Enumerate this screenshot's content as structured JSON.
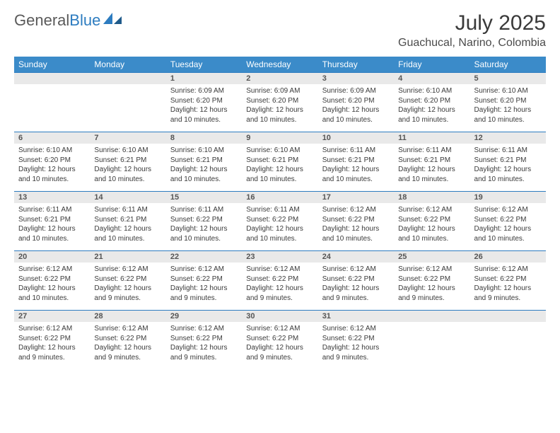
{
  "brand": {
    "word1": "General",
    "word2": "Blue"
  },
  "title": "July 2025",
  "location": "Guachucal, Narino, Colombia",
  "colors": {
    "header_bg": "#3b8bc9",
    "header_text": "#ffffff",
    "rule": "#2d7cc0",
    "daynum_bg": "#e9e9e9",
    "body_text": "#3a3a3a",
    "logo_gray": "#5a5a5a",
    "logo_blue": "#2d7cc0",
    "page_bg": "#ffffff"
  },
  "calendar": {
    "type": "calendar-table",
    "day_headers": [
      "Sunday",
      "Monday",
      "Tuesday",
      "Wednesday",
      "Thursday",
      "Friday",
      "Saturday"
    ],
    "first_weekday_index": 2,
    "days_in_month": 31,
    "header_fontsize": 12,
    "daynum_fontsize": 11,
    "body_fontsize": 10,
    "days": {
      "1": {
        "sunrise": "6:09 AM",
        "sunset": "6:20 PM",
        "daylight": "12 hours and 10 minutes."
      },
      "2": {
        "sunrise": "6:09 AM",
        "sunset": "6:20 PM",
        "daylight": "12 hours and 10 minutes."
      },
      "3": {
        "sunrise": "6:09 AM",
        "sunset": "6:20 PM",
        "daylight": "12 hours and 10 minutes."
      },
      "4": {
        "sunrise": "6:10 AM",
        "sunset": "6:20 PM",
        "daylight": "12 hours and 10 minutes."
      },
      "5": {
        "sunrise": "6:10 AM",
        "sunset": "6:20 PM",
        "daylight": "12 hours and 10 minutes."
      },
      "6": {
        "sunrise": "6:10 AM",
        "sunset": "6:20 PM",
        "daylight": "12 hours and 10 minutes."
      },
      "7": {
        "sunrise": "6:10 AM",
        "sunset": "6:21 PM",
        "daylight": "12 hours and 10 minutes."
      },
      "8": {
        "sunrise": "6:10 AM",
        "sunset": "6:21 PM",
        "daylight": "12 hours and 10 minutes."
      },
      "9": {
        "sunrise": "6:10 AM",
        "sunset": "6:21 PM",
        "daylight": "12 hours and 10 minutes."
      },
      "10": {
        "sunrise": "6:11 AM",
        "sunset": "6:21 PM",
        "daylight": "12 hours and 10 minutes."
      },
      "11": {
        "sunrise": "6:11 AM",
        "sunset": "6:21 PM",
        "daylight": "12 hours and 10 minutes."
      },
      "12": {
        "sunrise": "6:11 AM",
        "sunset": "6:21 PM",
        "daylight": "12 hours and 10 minutes."
      },
      "13": {
        "sunrise": "6:11 AM",
        "sunset": "6:21 PM",
        "daylight": "12 hours and 10 minutes."
      },
      "14": {
        "sunrise": "6:11 AM",
        "sunset": "6:21 PM",
        "daylight": "12 hours and 10 minutes."
      },
      "15": {
        "sunrise": "6:11 AM",
        "sunset": "6:22 PM",
        "daylight": "12 hours and 10 minutes."
      },
      "16": {
        "sunrise": "6:11 AM",
        "sunset": "6:22 PM",
        "daylight": "12 hours and 10 minutes."
      },
      "17": {
        "sunrise": "6:12 AM",
        "sunset": "6:22 PM",
        "daylight": "12 hours and 10 minutes."
      },
      "18": {
        "sunrise": "6:12 AM",
        "sunset": "6:22 PM",
        "daylight": "12 hours and 10 minutes."
      },
      "19": {
        "sunrise": "6:12 AM",
        "sunset": "6:22 PM",
        "daylight": "12 hours and 10 minutes."
      },
      "20": {
        "sunrise": "6:12 AM",
        "sunset": "6:22 PM",
        "daylight": "12 hours and 10 minutes."
      },
      "21": {
        "sunrise": "6:12 AM",
        "sunset": "6:22 PM",
        "daylight": "12 hours and 9 minutes."
      },
      "22": {
        "sunrise": "6:12 AM",
        "sunset": "6:22 PM",
        "daylight": "12 hours and 9 minutes."
      },
      "23": {
        "sunrise": "6:12 AM",
        "sunset": "6:22 PM",
        "daylight": "12 hours and 9 minutes."
      },
      "24": {
        "sunrise": "6:12 AM",
        "sunset": "6:22 PM",
        "daylight": "12 hours and 9 minutes."
      },
      "25": {
        "sunrise": "6:12 AM",
        "sunset": "6:22 PM",
        "daylight": "12 hours and 9 minutes."
      },
      "26": {
        "sunrise": "6:12 AM",
        "sunset": "6:22 PM",
        "daylight": "12 hours and 9 minutes."
      },
      "27": {
        "sunrise": "6:12 AM",
        "sunset": "6:22 PM",
        "daylight": "12 hours and 9 minutes."
      },
      "28": {
        "sunrise": "6:12 AM",
        "sunset": "6:22 PM",
        "daylight": "12 hours and 9 minutes."
      },
      "29": {
        "sunrise": "6:12 AM",
        "sunset": "6:22 PM",
        "daylight": "12 hours and 9 minutes."
      },
      "30": {
        "sunrise": "6:12 AM",
        "sunset": "6:22 PM",
        "daylight": "12 hours and 9 minutes."
      },
      "31": {
        "sunrise": "6:12 AM",
        "sunset": "6:22 PM",
        "daylight": "12 hours and 9 minutes."
      }
    },
    "labels": {
      "sunrise": "Sunrise:",
      "sunset": "Sunset:",
      "daylight": "Daylight:"
    }
  }
}
